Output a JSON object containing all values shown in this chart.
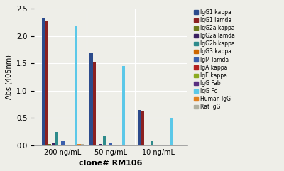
{
  "groups": [
    "200 ng/mL",
    "50 ng/mL",
    "10 ng/mL"
  ],
  "series": [
    {
      "label": "IgG1 kappa",
      "color": "#2C4B8C",
      "values": [
        2.32,
        1.68,
        0.65
      ]
    },
    {
      "label": "IgG1 lamda",
      "color": "#8B2020",
      "values": [
        2.27,
        1.53,
        0.62
      ]
    },
    {
      "label": "IgG2a kappa",
      "color": "#6B7A1A",
      "values": [
        0.03,
        0.015,
        0.01
      ]
    },
    {
      "label": "IgG2a lamda",
      "color": "#3A2060",
      "values": [
        0.05,
        0.02,
        0.01
      ]
    },
    {
      "label": "IgG2b kappa",
      "color": "#2E8B8B",
      "values": [
        0.24,
        0.17,
        0.07
      ]
    },
    {
      "label": "IgG3 kappa",
      "color": "#CC6600",
      "values": [
        0.01,
        0.01,
        0.01
      ]
    },
    {
      "label": "IgM lamda",
      "color": "#3A5FAD",
      "values": [
        0.08,
        0.035,
        0.01
      ]
    },
    {
      "label": "IgA kappa",
      "color": "#B22020",
      "values": [
        0.01,
        0.01,
        0.01
      ]
    },
    {
      "label": "IgE kappa",
      "color": "#8AAA20",
      "values": [
        0.01,
        0.01,
        0.01
      ]
    },
    {
      "label": "IgG Fab",
      "color": "#5A3080",
      "values": [
        0.01,
        0.01,
        0.01
      ]
    },
    {
      "label": "IgG Fc",
      "color": "#5BC8E8",
      "values": [
        2.18,
        1.45,
        0.51
      ]
    },
    {
      "label": "Human IgG",
      "color": "#E08020",
      "values": [
        0.02,
        0.01,
        0.01
      ]
    },
    {
      "label": "Rat IgG",
      "color": "#B0B0A0",
      "values": [
        0.02,
        0.01,
        0.01
      ]
    }
  ],
  "xlabel": "clone# RM106",
  "ylabel": "Abs (405nm)",
  "ylim": [
    0,
    2.5
  ],
  "yticks": [
    0.0,
    0.5,
    1.0,
    1.5,
    2.0,
    2.5
  ],
  "background_color": "#EEEEE8",
  "axis_fontsize": 7,
  "legend_fontsize": 5.5
}
